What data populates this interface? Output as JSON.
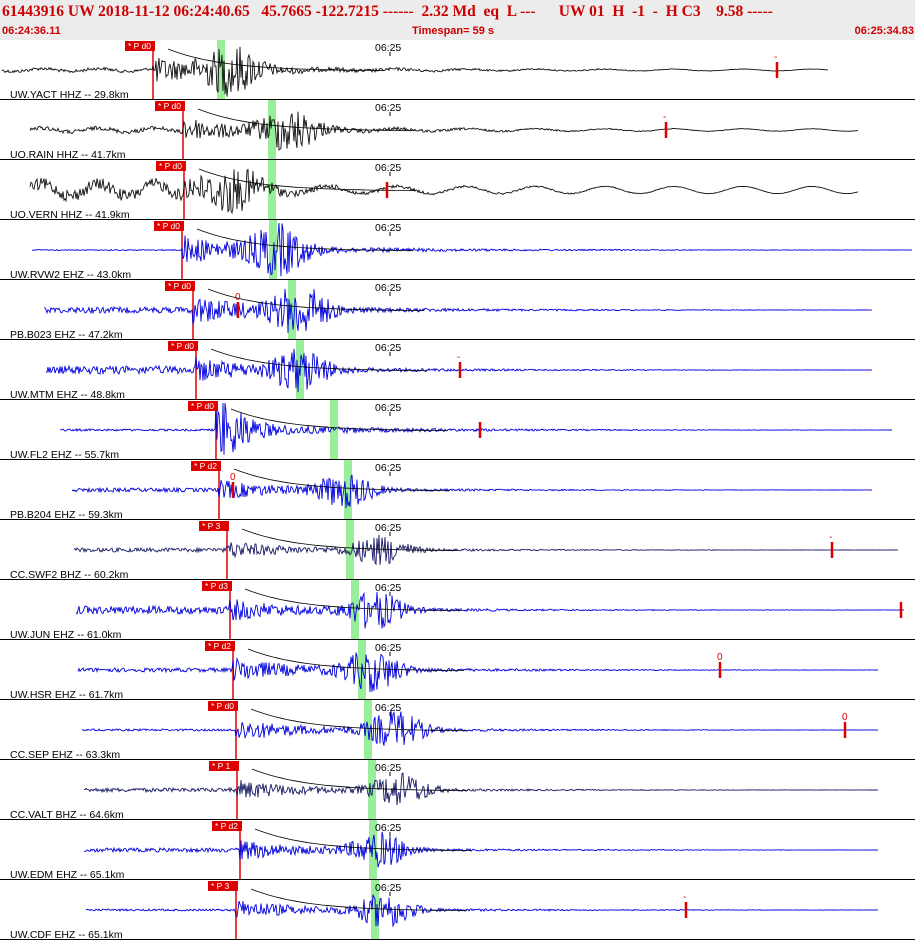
{
  "header": {
    "title": "61443916 UW 2018-11-12 06:24:40.65   45.7665 -122.7215 ------  2.32 Md  eq  L ---      UW 01  H  -1  -  H C3    9.58 -----",
    "start_time": "06:24:36.11",
    "timespan": "Timespan=  59 s",
    "end_time": "06:25:34.83"
  },
  "colors": {
    "header_text": "#cc0000",
    "pick": "#dd0000",
    "s_window": "#99ee99",
    "trace_blue": "#0000dd",
    "trace_black": "#111111",
    "trace_navy": "#1a1a66",
    "decay_curve": "#000000",
    "divider": "#000000"
  },
  "minute_mark": "06:25",
  "panels": [
    {
      "label": "UW.YACT HHZ -- 29.8km",
      "phase": "P d0",
      "color": "black",
      "pick_tag": "-",
      "pick_tag_x": 777
    },
    {
      "label": "UO.RAIN HHZ -- 41.7km",
      "phase": "P d0",
      "color": "black",
      "pick_tag": "-",
      "pick_tag_x": 666
    },
    {
      "label": "UO.VERN HHZ -- 41.9km",
      "phase": "P d0",
      "color": "black",
      "pick_tag": "",
      "pick_tag_x": 387
    },
    {
      "label": "UW.RVW2 EHZ -- 43.0km",
      "phase": "P d0",
      "color": "blue",
      "pick_tag": "",
      "pick_tag_x": 0
    },
    {
      "label": "PB.B023 EHZ -- 47.2km",
      "phase": "P d0",
      "color": "blue",
      "pick_tag": "0",
      "pick_tag_x": 238
    },
    {
      "label": "UW.MTM EHZ -- 48.8km",
      "phase": "P d0",
      "color": "blue",
      "pick_tag": "-",
      "pick_tag_x": 460
    },
    {
      "label": "UW.FL2 EHZ -- 55.7km",
      "phase": "P d0",
      "color": "blue",
      "pick_tag": "",
      "pick_tag_x": 480
    },
    {
      "label": "PB.B204 EHZ -- 59.3km",
      "phase": "P d2",
      "color": "blue",
      "pick_tag": "0",
      "pick_tag_x": 233
    },
    {
      "label": "CC.SWF2 BHZ -- 60.2km",
      "phase": "P 3",
      "color": "navy",
      "pick_tag": "-",
      "pick_tag_x": 832
    },
    {
      "label": "UW.JUN EHZ -- 61.0km",
      "phase": "P d3",
      "color": "blue",
      "pick_tag": "",
      "pick_tag_x": 901
    },
    {
      "label": "UW.HSR EHZ -- 61.7km",
      "phase": "P d2",
      "color": "blue",
      "pick_tag": "0",
      "pick_tag_x": 720
    },
    {
      "label": "CC.SEP EHZ -- 63.3km",
      "phase": "P d0",
      "color": "blue",
      "pick_tag": "0",
      "pick_tag_x": 845
    },
    {
      "label": "CC.VALT BHZ -- 64.6km",
      "phase": "P 1",
      "color": "navy",
      "pick_tag": "",
      "pick_tag_x": 0
    },
    {
      "label": "UW.EDM EHZ -- 65.1km",
      "phase": "P d2",
      "color": "blue",
      "pick_tag": "",
      "pick_tag_x": 0
    },
    {
      "label": "UW.CDF EHZ -- 65.1km",
      "phase": "P 3",
      "color": "blue",
      "pick_tag": "-",
      "pick_tag_x": 686
    }
  ]
}
